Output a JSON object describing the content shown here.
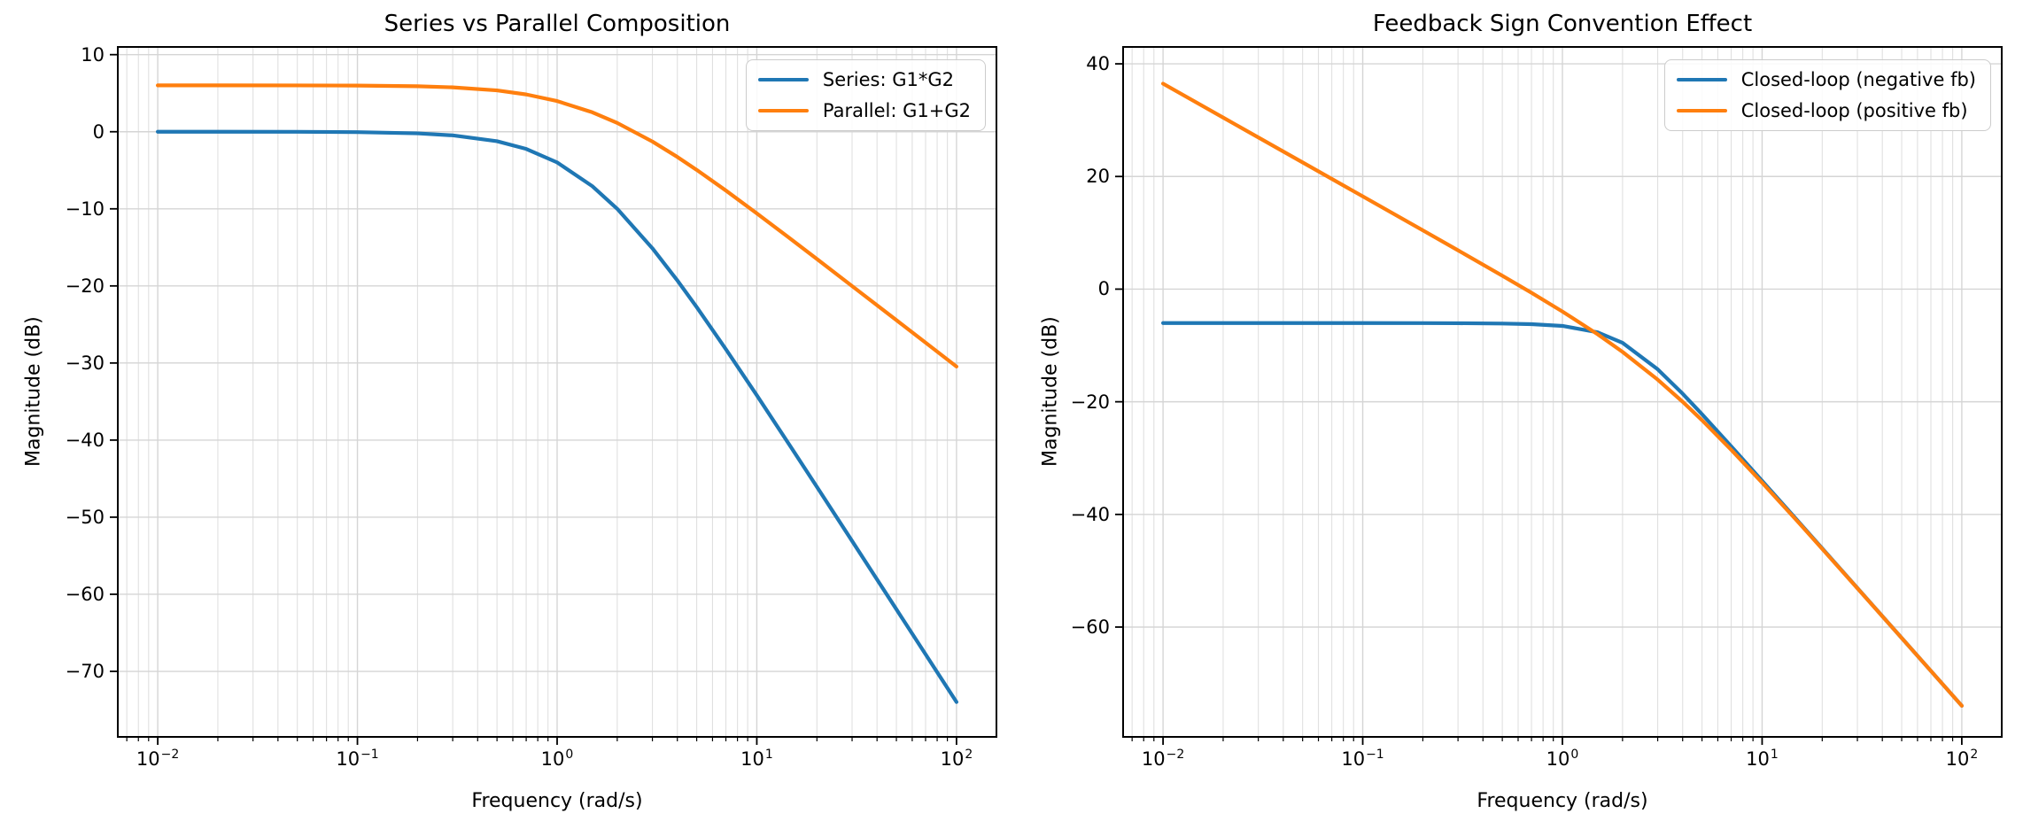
{
  "figure": {
    "background": "#ffffff",
    "text_color": "#000000",
    "grid_major_color": "#d5d5d5",
    "grid_minor_color": "#e0e0e0",
    "spine_color": "#000000"
  },
  "chart_data": [
    {
      "type": "line",
      "title": "Series vs Parallel Composition",
      "xlabel": "Frequency (rad/s)",
      "ylabel": "Magnitude (dB)",
      "xscale": "log",
      "grid": "both-major-and-log-minor",
      "legend_position": "upper right",
      "xlim": [
        0.0063096,
        158.489
      ],
      "ylim": [
        -78.5,
        11
      ],
      "xticks": [
        {
          "exp": -2,
          "base": "10",
          "sup": "−2"
        },
        {
          "exp": -1,
          "base": "10",
          "sup": "−1"
        },
        {
          "exp": 0,
          "base": "10",
          "sup": "0"
        },
        {
          "exp": 1,
          "base": "10",
          "sup": "1"
        },
        {
          "exp": 2,
          "base": "10",
          "sup": "2"
        }
      ],
      "yticks": [
        {
          "value": 10,
          "label": "10"
        },
        {
          "value": 0,
          "label": "0"
        },
        {
          "value": -10,
          "label": "−10"
        },
        {
          "value": -20,
          "label": "−20"
        },
        {
          "value": -30,
          "label": "−30"
        },
        {
          "value": -40,
          "label": "−40"
        },
        {
          "value": -50,
          "label": "−50"
        },
        {
          "value": -60,
          "label": "−60"
        },
        {
          "value": -70,
          "label": "−70"
        }
      ],
      "x": [
        0.01,
        0.02,
        0.05,
        0.1,
        0.2,
        0.3,
        0.5,
        0.7,
        1,
        1.5,
        2,
        3,
        4,
        5,
        7,
        10,
        15,
        20,
        30,
        50,
        70,
        100
      ],
      "series": [
        {
          "name": "Series: G1*G2",
          "color": "#1f77b4",
          "values": [
            0,
            0,
            -0.01,
            -0.05,
            -0.21,
            -0.47,
            -1.23,
            -2.23,
            -3.98,
            -7.06,
            -10,
            -15.12,
            -19.29,
            -22.75,
            -28.21,
            -34.19,
            -41.12,
            -46.07,
            -53.09,
            -61.95,
            -67.79,
            -73.98
          ]
        },
        {
          "name": "Parallel: G1+G2",
          "color": "#ff7f0e",
          "values": [
            6.02,
            6.02,
            6.01,
            5.99,
            5.9,
            5.76,
            5.36,
            4.84,
            3.98,
            2.52,
            1.14,
            -1.27,
            -3.27,
            -4.95,
            -7.63,
            -10.59,
            -14.04,
            -16.51,
            -20.02,
            -24.44,
            -27.36,
            -30.46
          ]
        }
      ]
    },
    {
      "type": "line",
      "title": "Feedback Sign Convention Effect",
      "xlabel": "Frequency (rad/s)",
      "ylabel": "Magnitude (dB)",
      "xscale": "log",
      "grid": "both-major-and-log-minor",
      "legend_position": "upper right",
      "xlim": [
        0.0063096,
        158.489
      ],
      "ylim": [
        -79.5,
        43
      ],
      "xticks": [
        {
          "exp": -2,
          "base": "10",
          "sup": "−2"
        },
        {
          "exp": -1,
          "base": "10",
          "sup": "−1"
        },
        {
          "exp": 0,
          "base": "10",
          "sup": "0"
        },
        {
          "exp": 1,
          "base": "10",
          "sup": "1"
        },
        {
          "exp": 2,
          "base": "10",
          "sup": "2"
        }
      ],
      "yticks": [
        {
          "value": 40,
          "label": "40"
        },
        {
          "value": 20,
          "label": "20"
        },
        {
          "value": 0,
          "label": "0"
        },
        {
          "value": -20,
          "label": "−20"
        },
        {
          "value": -40,
          "label": "−40"
        },
        {
          "value": -60,
          "label": "−60"
        }
      ],
      "x": [
        0.01,
        0.02,
        0.05,
        0.1,
        0.2,
        0.3,
        0.5,
        0.7,
        1,
        1.5,
        2,
        3,
        4,
        5,
        7,
        10,
        15,
        20,
        30,
        50,
        70,
        100
      ],
      "series": [
        {
          "name": "Closed-loop (negative fb)",
          "color": "#1f77b4",
          "values": [
            -6.02,
            -6.02,
            -6.02,
            -6.02,
            -6.03,
            -6.05,
            -6.11,
            -6.22,
            -6.53,
            -7.66,
            -9.54,
            -14.23,
            -18.57,
            -22.21,
            -27.9,
            -34.03,
            -41.04,
            -46.03,
            -53.07,
            -61.94,
            -67.78,
            -73.98
          ]
        },
        {
          "name": "Closed-loop (positive fb)",
          "color": "#ff7f0e",
          "values": [
            36.48,
            30.46,
            22.5,
            16.47,
            10.44,
            6.89,
            2.38,
            -0.65,
            -3.98,
            -8.01,
            -11.14,
            -16.07,
            -20,
            -23.27,
            -28.52,
            -34.35,
            -41.19,
            -46.12,
            -53.11,
            -61.95,
            -67.79,
            -73.98
          ]
        }
      ]
    }
  ]
}
